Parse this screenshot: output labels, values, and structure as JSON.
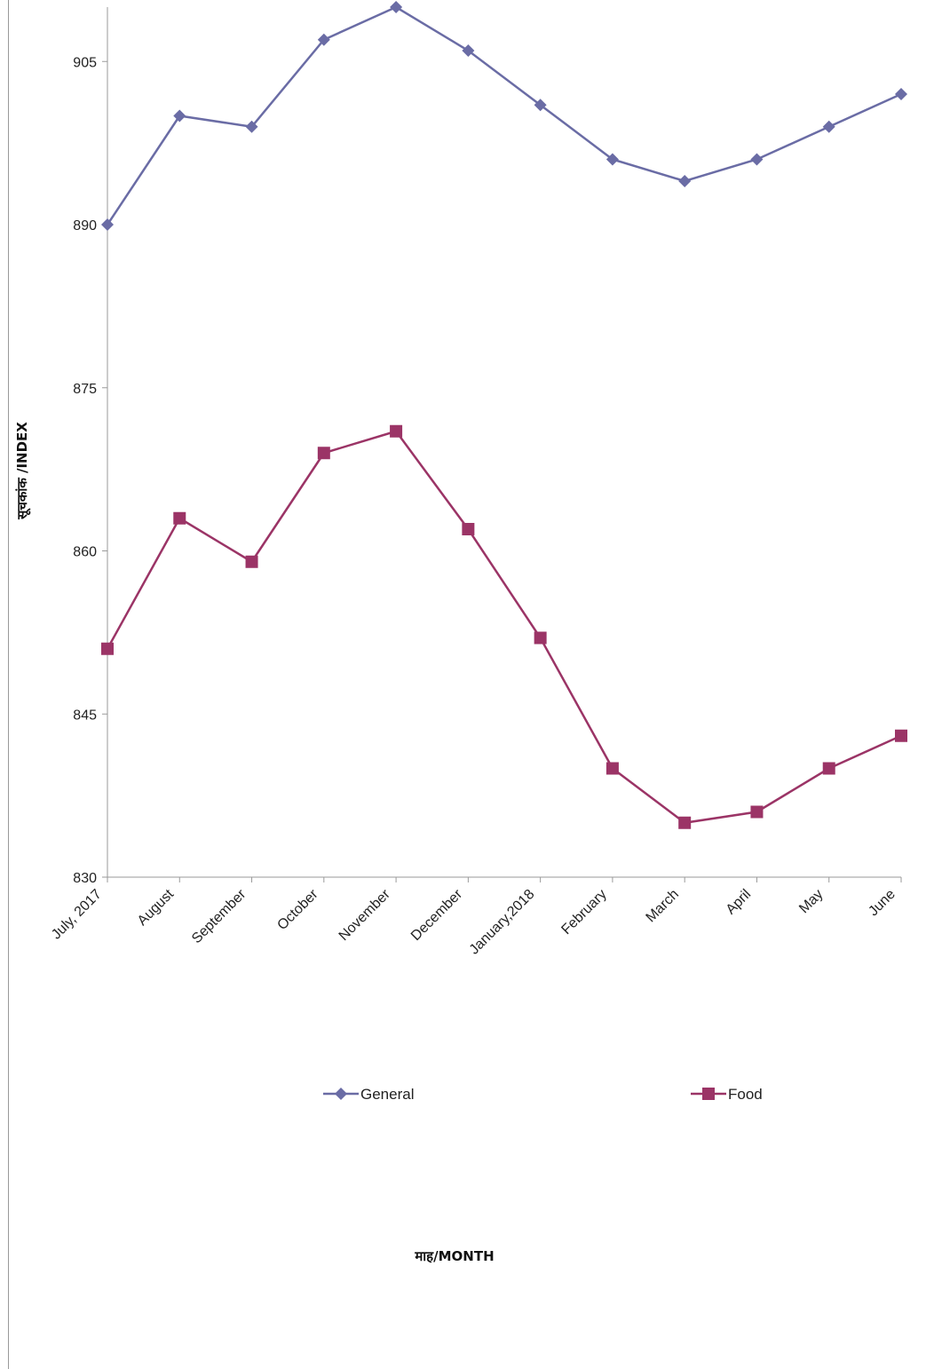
{
  "chart_data": {
    "type": "line",
    "categories": [
      "July, 2017",
      "August",
      "September",
      "October",
      "November",
      "December",
      "January,2018",
      "February",
      "March",
      "April",
      "May",
      "June"
    ],
    "series": [
      {
        "name": "General",
        "values": [
          890,
          900,
          899,
          907,
          910,
          906,
          901,
          896,
          894,
          896,
          899,
          902
        ],
        "color": "#6A6CA5",
        "marker": "diamond"
      },
      {
        "name": "Food",
        "values": [
          851,
          863,
          859,
          869,
          871,
          862,
          852,
          840,
          835,
          836,
          840,
          843
        ],
        "color": "#9B3466",
        "marker": "square"
      }
    ],
    "yticks": [
      830,
      845,
      860,
      875,
      890,
      905
    ],
    "ylim": [
      830,
      910
    ],
    "ylabel": "सूचकांक /INDEX",
    "xlabel": "माह/MONTH",
    "legend_position": "bottom",
    "grid": false
  }
}
